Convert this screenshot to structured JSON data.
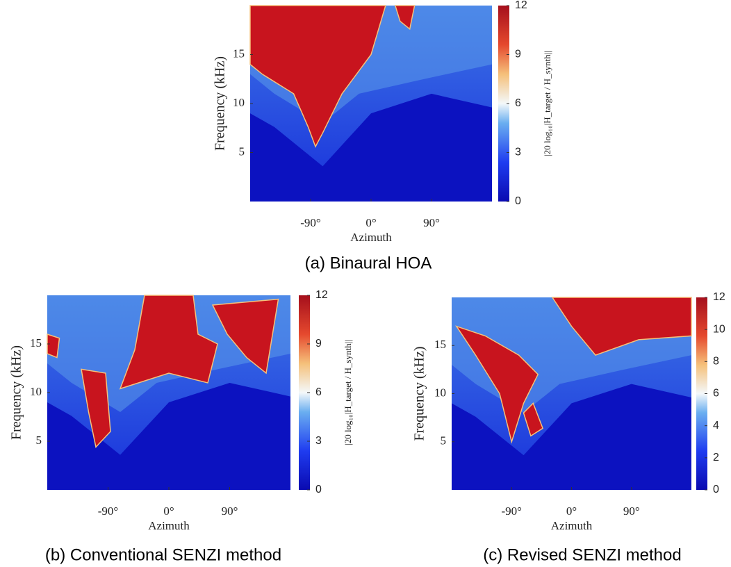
{
  "chart_data": [
    {
      "type": "heatmap",
      "caption": "(a) Binaural HOA",
      "xlabel": "Azimuth",
      "ylabel": "Frequency (kHz)",
      "xlim": [
        -180,
        180
      ],
      "xticks": [
        {
          "value": -90,
          "label": "-90°"
        },
        {
          "value": 0,
          "label": "0°"
        },
        {
          "value": 90,
          "label": "90°"
        }
      ],
      "ylim": [
        0,
        20
      ],
      "yticks": [
        5,
        10,
        15
      ],
      "colorbar_label": "|20 log₁₀|H_target / H_synth||",
      "clim": [
        0,
        12
      ],
      "cticks": [
        0,
        3,
        6,
        9,
        12
      ]
    },
    {
      "type": "heatmap",
      "caption": "(b) Conventional SENZI method",
      "xlabel": "Azimuth",
      "ylabel": "Frequency (kHz)",
      "xlim": [
        -180,
        180
      ],
      "xticks": [
        {
          "value": -90,
          "label": "-90°"
        },
        {
          "value": 0,
          "label": "0°"
        },
        {
          "value": 90,
          "label": "90°"
        }
      ],
      "ylim": [
        0,
        20
      ],
      "yticks": [
        5,
        10,
        15
      ],
      "colorbar_label": "|20 log₁₀|H_target / H_synth||",
      "clim": [
        0,
        12
      ],
      "cticks": [
        0,
        3,
        6,
        9,
        12
      ]
    },
    {
      "type": "heatmap",
      "caption": "(c) Revised SENZI method",
      "xlabel": "Azimuth",
      "ylabel": "Frequency (kHz)",
      "xlim": [
        -180,
        180
      ],
      "xticks": [
        {
          "value": -90,
          "label": "-90°"
        },
        {
          "value": 0,
          "label": "0°"
        },
        {
          "value": 90,
          "label": "90°"
        }
      ],
      "ylim": [
        0,
        20
      ],
      "yticks": [
        5,
        10,
        15
      ],
      "clim": [
        0,
        12
      ],
      "cticks": [
        0,
        2,
        4,
        6,
        8,
        10,
        12
      ]
    }
  ]
}
